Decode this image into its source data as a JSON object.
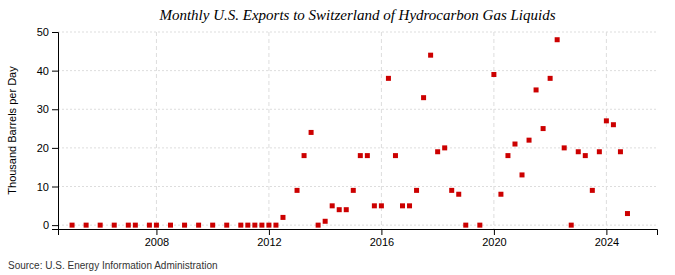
{
  "chart_data": {
    "type": "scatter",
    "title": "Monthly U.S. Exports to Switzerland of Hydrocarbon Gas Liquids",
    "y_label": "Thousand Barrels per Day",
    "annotations": [
      "Source: U.S. Energy Information Administration"
    ],
    "color": "#cc0000",
    "marker": "square",
    "grid": true,
    "x": [
      2005.0,
      2005.5,
      2006.0,
      2006.5,
      2007.0,
      2007.25,
      2007.75,
      2008.0,
      2008.5,
      2009.0,
      2009.5,
      2010.0,
      2010.5,
      2011.0,
      2011.25,
      2011.5,
      2011.75,
      2012.0,
      2012.25,
      2012.5,
      2013.0,
      2013.25,
      2013.5,
      2013.75,
      2014.0,
      2014.25,
      2014.5,
      2014.75,
      2015.0,
      2015.25,
      2015.5,
      2015.75,
      2016.0,
      2016.25,
      2016.5,
      2016.75,
      2017.0,
      2017.25,
      2017.5,
      2017.75,
      2018.0,
      2018.25,
      2018.5,
      2018.75,
      2019.0,
      2019.5,
      2020.0,
      2020.25,
      2020.5,
      2020.75,
      2021.0,
      2021.25,
      2021.5,
      2021.75,
      2022.0,
      2022.25,
      2022.5,
      2022.75,
      2023.0,
      2023.25,
      2023.5,
      2023.75,
      2024.0,
      2024.25,
      2024.5,
      2024.75
    ],
    "values": [
      0,
      0,
      0,
      0,
      0,
      0,
      0,
      0,
      0,
      0,
      0,
      0,
      0,
      0,
      0,
      0,
      0,
      0,
      0,
      2,
      9,
      18,
      24,
      0,
      1,
      5,
      4,
      4,
      9,
      18,
      18,
      5,
      5,
      38,
      18,
      5,
      5,
      9,
      33,
      44,
      19,
      20,
      9,
      8,
      0,
      0,
      39,
      8,
      18,
      21,
      13,
      22,
      35,
      25,
      38,
      48,
      20,
      0,
      19,
      18,
      9,
      19,
      27,
      26,
      19,
      3
    ],
    "xlim": [
      2004.5,
      2025.8
    ],
    "xticks": [
      2008,
      2012,
      2016,
      2020,
      2024
    ],
    "ylim": [
      -1,
      50
    ],
    "yticks": [
      0,
      10,
      20,
      30,
      40,
      50
    ]
  }
}
